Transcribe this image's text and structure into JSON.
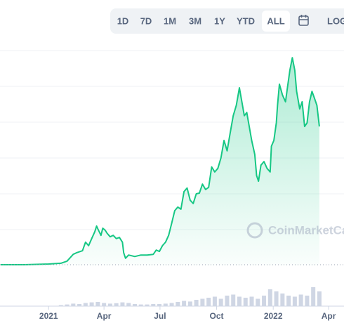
{
  "range_buttons": [
    "1D",
    "7D",
    "1M",
    "3M",
    "1Y",
    "YTD",
    "ALL"
  ],
  "selected": "ALL",
  "log_button": "LOG",
  "watermark": "CoinMarketCap",
  "chart_data": {
    "type": "line",
    "color": "#16c784",
    "x": [
      -78,
      -40,
      0,
      20,
      30,
      40,
      45,
      55,
      60,
      65,
      70,
      75,
      78,
      80,
      85,
      88,
      92,
      95,
      100,
      105,
      110,
      115,
      120,
      122,
      125,
      130,
      140,
      150,
      160,
      170,
      175,
      180,
      185,
      190,
      195,
      200,
      205,
      210,
      215,
      220,
      225,
      230,
      235,
      240,
      245,
      250,
      255,
      260,
      265,
      270,
      275,
      280,
      285,
      290,
      295,
      300,
      305,
      310,
      315,
      318,
      322,
      326,
      330,
      335,
      338,
      341,
      345,
      350,
      355,
      360,
      362,
      366,
      370,
      372,
      375,
      380,
      385,
      388,
      392,
      396,
      400,
      403,
      408,
      412,
      416,
      420,
      424,
      428,
      432,
      436,
      440
    ],
    "values": [
      0.02,
      0.02,
      0.04,
      0.06,
      0.12,
      0.31,
      0.35,
      0.41,
      0.65,
      0.55,
      0.75,
      0.94,
      1.1,
      1.02,
      0.84,
      1.04,
      0.98,
      0.9,
      0.8,
      0.84,
      0.75,
      0.78,
      0.65,
      0.35,
      0.2,
      0.29,
      0.25,
      0.29,
      0.29,
      0.31,
      0.43,
      0.39,
      0.55,
      0.65,
      0.84,
      1.18,
      1.53,
      1.63,
      1.57,
      2.06,
      2.16,
      1.82,
      1.73,
      2.0,
      2.02,
      2.27,
      2.12,
      2.18,
      2.75,
      2.61,
      2.71,
      3.0,
      3.49,
      3.2,
      3.69,
      4.18,
      4.47,
      4.96,
      4.47,
      4.18,
      4.27,
      3.88,
      3.49,
      3.1,
      2.51,
      2.35,
      2.8,
      2.9,
      2.71,
      2.61,
      3.33,
      3.49,
      3.98,
      4.47,
      5.06,
      4.76,
      4.57,
      4.96,
      5.45,
      5.8,
      5.45,
      4.86,
      4.37,
      4.57,
      3.88,
      3.98,
      4.57,
      4.86,
      4.67,
      4.47,
      3.88
    ],
    "xlim": [
      -79,
      480
    ],
    "ylim": [
      0,
      6
    ],
    "grid": true,
    "xticks": [
      {
        "value": 0,
        "label": "2021"
      },
      {
        "value": 90,
        "label": "Apr"
      },
      {
        "value": 181,
        "label": "Jul"
      },
      {
        "value": 273,
        "label": "Oct"
      },
      {
        "value": 365,
        "label": "2022"
      },
      {
        "value": 455,
        "label": "Apr"
      }
    ],
    "volume": {
      "color": "#cfd6e4",
      "ylim": [
        0,
        1
      ],
      "x": [
        20,
        30,
        40,
        50,
        60,
        70,
        80,
        90,
        100,
        110,
        120,
        130,
        140,
        150,
        160,
        170,
        180,
        190,
        200,
        210,
        220,
        230,
        240,
        250,
        260,
        270,
        280,
        290,
        300,
        310,
        320,
        330,
        340,
        350,
        360,
        370,
        380,
        390,
        400,
        410,
        420,
        430,
        440
      ],
      "values": [
        0.05,
        0.08,
        0.12,
        0.1,
        0.15,
        0.18,
        0.2,
        0.15,
        0.12,
        0.14,
        0.18,
        0.15,
        0.1,
        0.08,
        0.08,
        0.1,
        0.1,
        0.12,
        0.15,
        0.2,
        0.25,
        0.22,
        0.3,
        0.35,
        0.4,
        0.45,
        0.35,
        0.5,
        0.55,
        0.45,
        0.4,
        0.45,
        0.35,
        0.5,
        0.8,
        0.7,
        0.6,
        0.5,
        0.45,
        0.55,
        0.5,
        0.9,
        0.7
      ]
    }
  }
}
